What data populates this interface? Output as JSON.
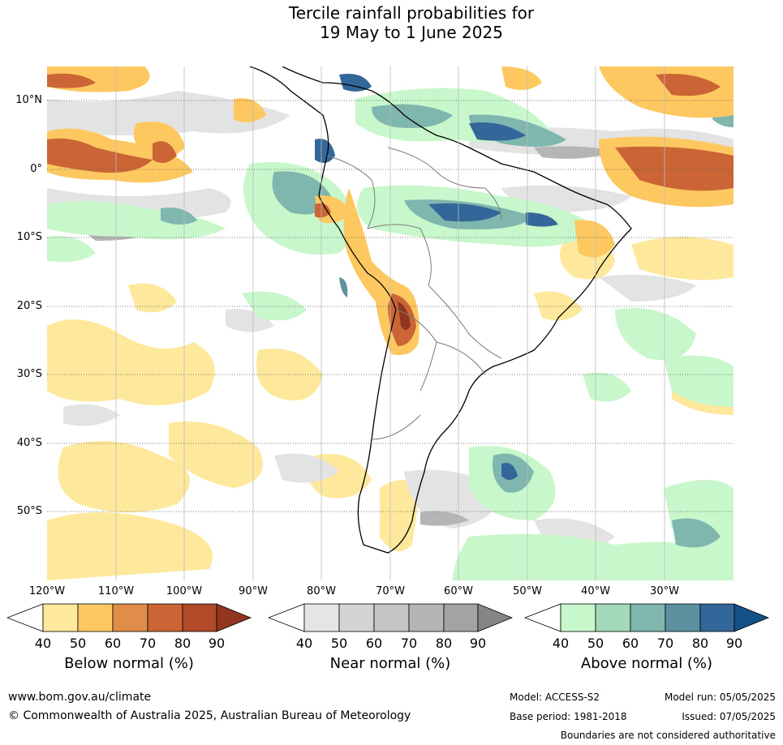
{
  "title": {
    "line1": "Tercile rainfall probabilities for",
    "line2": "19 May to 1 June 2025"
  },
  "map": {
    "lat_labels": [
      "10°N",
      "0°",
      "10°S",
      "20°S",
      "30°S",
      "40°S",
      "50°S"
    ],
    "lon_labels": [
      "120°W",
      "110°W",
      "100°W",
      "90°W",
      "80°W",
      "70°W",
      "60°W",
      "50°W",
      "40°W",
      "30°W"
    ]
  },
  "colorbars": [
    {
      "label": "Below normal (%)",
      "ticks": [
        "40",
        "50",
        "60",
        "70",
        "80",
        "90"
      ],
      "colors": [
        "#ffffff",
        "#fee89b",
        "#fec861",
        "#df8d48",
        "#cc6535",
        "#b04a28",
        "#913420"
      ]
    },
    {
      "label": "Near normal (%)",
      "ticks": [
        "40",
        "50",
        "60",
        "70",
        "80",
        "90"
      ],
      "colors": [
        "#ffffff",
        "#e5e5e5",
        "#d4d4d4",
        "#c4c4c4",
        "#b5b5b5",
        "#a3a3a3",
        "#858585"
      ]
    },
    {
      "label": "Above normal (%)",
      "ticks": [
        "40",
        "50",
        "60",
        "70",
        "80",
        "90"
      ],
      "colors": [
        "#ffffff",
        "#c7f7ca",
        "#a3d8b9",
        "#7fb6ae",
        "#5c91a0",
        "#336699",
        "#144f86"
      ]
    }
  ],
  "footer": {
    "website": "www.bom.gov.au/climate",
    "copyright": "© Commonwealth of Australia 2025, Australian Bureau of Meteorology",
    "model": "Model: ACCESS-S2",
    "base_period": "Base period: 1981-2018",
    "model_run": "Model run: 05/05/2025",
    "issued": "Issued: 07/05/2025",
    "disclaimer": "Boundaries are not considered authoritative"
  }
}
